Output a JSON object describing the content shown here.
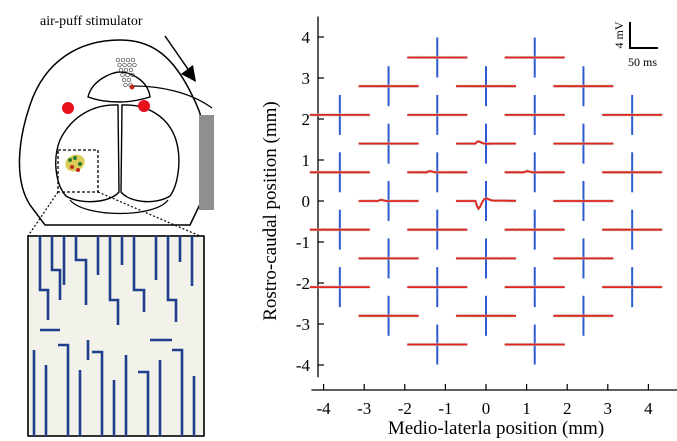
{
  "figure": {
    "stimulator_label": "air-puff stimulator",
    "scale_bar": {
      "voltage": "4 mV",
      "time": "50 ms"
    }
  },
  "chart_data": {
    "type": "scatter",
    "xlabel": "Medio-laterla position (mm)",
    "ylabel": "Rostro-caudal position (mm)",
    "xlim": [
      -4.3,
      4.8
    ],
    "ylim": [
      -4.3,
      4.5
    ],
    "xticks": [
      "-4",
      "-3",
      "-2",
      "-1",
      "0",
      "1",
      "2",
      "3",
      "4"
    ],
    "yticks": [
      "4",
      "3",
      "2",
      "1",
      "0",
      "-1",
      "-2",
      "-3",
      "-4"
    ],
    "x_tick_values": [
      -4,
      -3,
      -2,
      -1,
      0,
      1,
      2,
      3,
      4
    ],
    "y_tick_values": [
      4,
      3,
      2,
      1,
      0,
      -1,
      -2,
      -3,
      -4
    ],
    "colors": {
      "trace": "#e0251c",
      "electrode_line": "#2d5bd1",
      "trial_shadow": "#bdbdbd",
      "probe": "#1f3e8c"
    },
    "electrode_columns_x": [
      -3.6,
      -2.4,
      -1.2,
      0.0,
      1.2,
      2.4,
      3.6
    ],
    "recording_sites": [
      {
        "x": -1.2,
        "y": 3.5,
        "response": "flat"
      },
      {
        "x": 1.2,
        "y": 3.5,
        "response": "flat"
      },
      {
        "x": -2.4,
        "y": 2.8,
        "response": "flat"
      },
      {
        "x": 0.0,
        "y": 2.8,
        "response": "flat"
      },
      {
        "x": 2.4,
        "y": 2.8,
        "response": "flat"
      },
      {
        "x": -3.6,
        "y": 2.1,
        "response": "flat"
      },
      {
        "x": -1.2,
        "y": 2.1,
        "response": "flat"
      },
      {
        "x": 1.2,
        "y": 2.1,
        "response": "flat"
      },
      {
        "x": 3.6,
        "y": 2.1,
        "response": "flat"
      },
      {
        "x": -2.4,
        "y": 1.4,
        "response": "flat"
      },
      {
        "x": 0.0,
        "y": 1.4,
        "response": "small"
      },
      {
        "x": 2.4,
        "y": 1.4,
        "response": "flat"
      },
      {
        "x": -3.6,
        "y": 0.7,
        "response": "flat"
      },
      {
        "x": -1.2,
        "y": 0.7,
        "response": "tiny"
      },
      {
        "x": 1.2,
        "y": 0.7,
        "response": "tiny"
      },
      {
        "x": 3.6,
        "y": 0.7,
        "response": "flat"
      },
      {
        "x": -2.4,
        "y": 0.0,
        "response": "tiny"
      },
      {
        "x": 0.0,
        "y": 0.0,
        "response": "large"
      },
      {
        "x": 2.4,
        "y": 0.0,
        "response": "flat"
      },
      {
        "x": -3.6,
        "y": -0.7,
        "response": "flat"
      },
      {
        "x": -1.2,
        "y": -0.7,
        "response": "flat"
      },
      {
        "x": 1.2,
        "y": -0.7,
        "response": "flat"
      },
      {
        "x": 3.6,
        "y": -0.7,
        "response": "flat"
      },
      {
        "x": -2.4,
        "y": -1.4,
        "response": "flat"
      },
      {
        "x": 0.0,
        "y": -1.4,
        "response": "flat"
      },
      {
        "x": 2.4,
        "y": -1.4,
        "response": "flat"
      },
      {
        "x": -3.6,
        "y": -2.1,
        "response": "flat"
      },
      {
        "x": -1.2,
        "y": -2.1,
        "response": "flat"
      },
      {
        "x": 1.2,
        "y": -2.1,
        "response": "flat"
      },
      {
        "x": 3.6,
        "y": -2.1,
        "response": "flat"
      },
      {
        "x": -2.4,
        "y": -2.8,
        "response": "flat"
      },
      {
        "x": 0.0,
        "y": -2.8,
        "response": "flat"
      },
      {
        "x": 2.4,
        "y": -2.8,
        "response": "flat"
      },
      {
        "x": -1.2,
        "y": -3.5,
        "response": "flat"
      },
      {
        "x": 1.2,
        "y": -3.5,
        "response": "flat"
      }
    ]
  }
}
